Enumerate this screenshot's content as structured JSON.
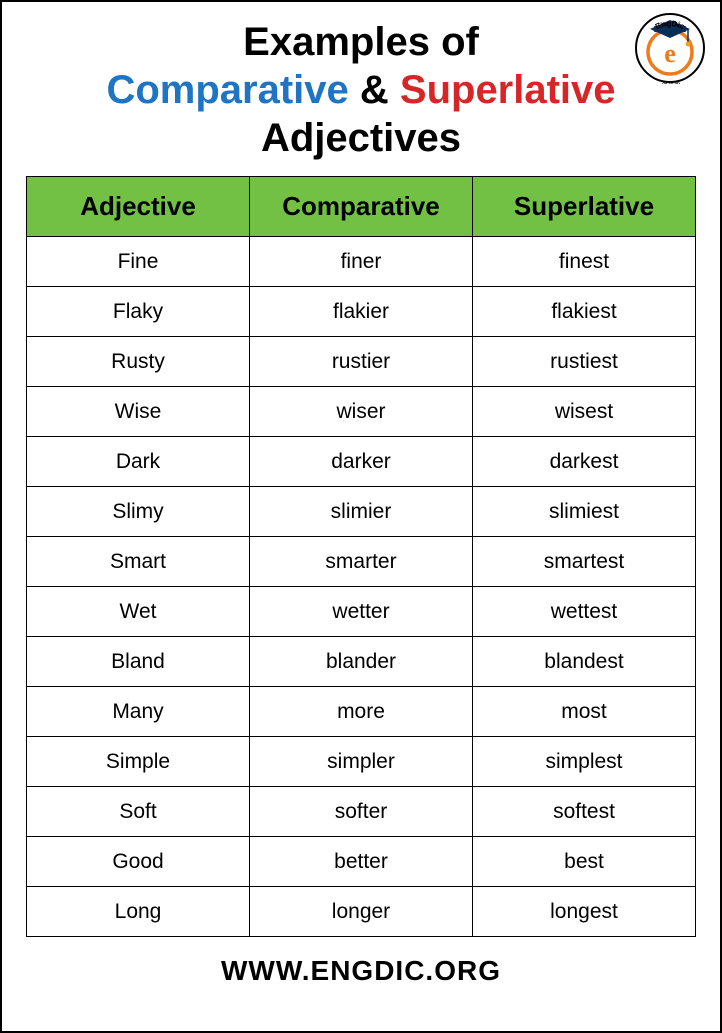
{
  "title": {
    "line1": "Examples of",
    "comparative": "Comparative",
    "amp": "&",
    "superlative": "Superlative",
    "adjectives": "Adjectives"
  },
  "logo": {
    "top_text": "EngDic",
    "bottom_text": "www.",
    "letter": "e",
    "outer_ring": "#000000",
    "inner_ring": "#f07b1a",
    "cap_color": "#0b2e59",
    "tassel_color": "#f0a020"
  },
  "table": {
    "columns": [
      "Adjective",
      "Comparative",
      "Superlative"
    ],
    "header_bg": "#72c144",
    "border_color": "#000000",
    "rows": [
      [
        "Fine",
        "finer",
        "finest"
      ],
      [
        "Flaky",
        "flakier",
        "flakiest"
      ],
      [
        "Rusty",
        "rustier",
        "rustiest"
      ],
      [
        "Wise",
        "wiser",
        "wisest"
      ],
      [
        "Dark",
        "darker",
        "darkest"
      ],
      [
        "Slimy",
        "slimier",
        "slimiest"
      ],
      [
        "Smart",
        "smarter",
        "smartest"
      ],
      [
        "Wet",
        "wetter",
        "wettest"
      ],
      [
        "Bland",
        "blander",
        "blandest"
      ],
      [
        "Many",
        "more",
        "most"
      ],
      [
        "Simple",
        "simpler",
        "simplest"
      ],
      [
        "Soft",
        "softer",
        "softest"
      ],
      [
        "Good",
        "better",
        "best"
      ],
      [
        "Long",
        "longer",
        "longest"
      ]
    ]
  },
  "footer": "WWW.ENGDIC.ORG",
  "colors": {
    "comparative": "#1f75c4",
    "superlative": "#d62728",
    "text": "#000000",
    "background": "#ffffff"
  }
}
